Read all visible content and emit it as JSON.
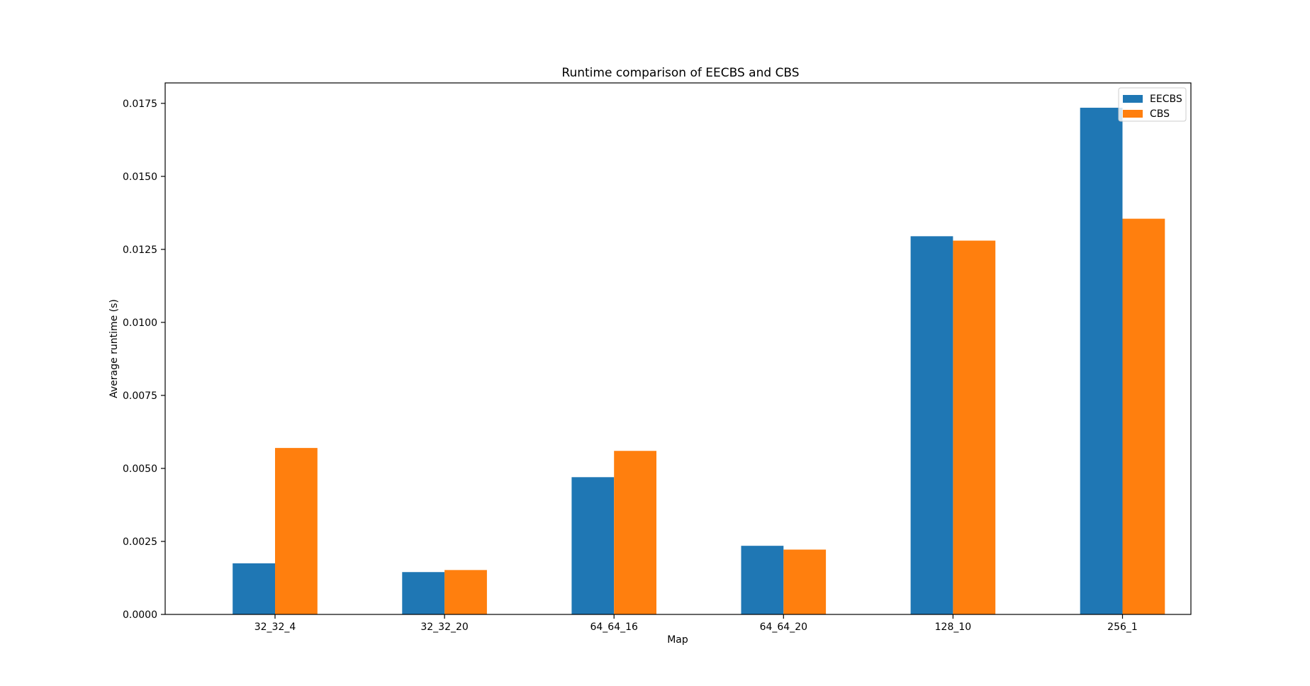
{
  "chart_data": {
    "type": "bar",
    "title": "Runtime comparison of EECBS and CBS",
    "xlabel": "Map",
    "ylabel": "Average runtime (s)",
    "categories": [
      "32_32_4",
      "32_32_20",
      "64_64_16",
      "64_64_20",
      "128_10",
      "256_1"
    ],
    "series": [
      {
        "name": "EECBS",
        "color": "#1f77b4",
        "values": [
          0.00175,
          0.00145,
          0.0047,
          0.00235,
          0.01295,
          0.01735
        ]
      },
      {
        "name": "CBS",
        "color": "#ff7f0e",
        "values": [
          0.0057,
          0.00152,
          0.0056,
          0.00222,
          0.0128,
          0.01355
        ]
      }
    ],
    "ylim": [
      0,
      0.0182
    ],
    "yticks": [
      "0.0000",
      "0.0025",
      "0.0050",
      "0.0075",
      "0.0100",
      "0.0125",
      "0.0150",
      "0.0175"
    ],
    "legend_position": "top-right",
    "grid": false
  }
}
